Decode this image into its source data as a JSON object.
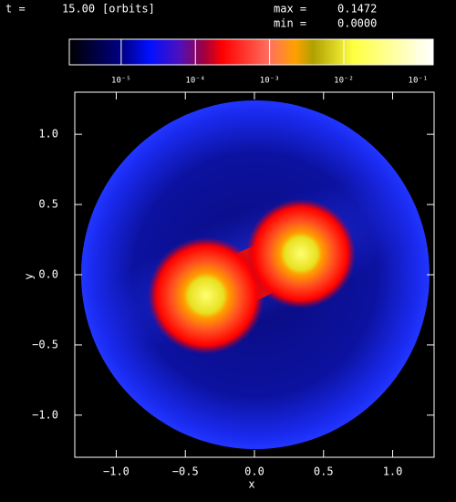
{
  "chart_data": {
    "type": "image",
    "header": {
      "t_label": "t =",
      "time": {
        "value": 15,
        "label": "15.00"
      },
      "time_unit": "[orbits]",
      "max_label": "max =",
      "max": 0.1472,
      "min_label": "min =",
      "min": {
        "value": 0,
        "label": "0.0000"
      }
    },
    "xlabel": "x",
    "ylabel": "y",
    "xlim": [
      -1.3,
      1.3
    ],
    "ylim": [
      -1.3,
      1.3
    ],
    "xticks": [
      {
        "value": -1,
        "label": "−1.0"
      },
      {
        "value": -0.5,
        "label": "−0.5"
      },
      {
        "value": 0,
        "label": "0.0"
      },
      {
        "value": 0.5,
        "label": "0.5"
      },
      {
        "value": 1,
        "label": "1.0"
      }
    ],
    "yticks": [
      {
        "value": -1,
        "label": "−1.0"
      },
      {
        "value": -0.5,
        "label": "−0.5"
      },
      {
        "value": 0,
        "label": "0.0"
      },
      {
        "value": 0.5,
        "label": "0.5"
      },
      {
        "value": 1,
        "label": "1.0"
      }
    ],
    "colorbar": {
      "scale": "log",
      "lim": [
        2e-06,
        0.16
      ],
      "ticks": [
        {
          "value": 1e-05,
          "label": "10⁻⁵"
        },
        {
          "value": 0.0001,
          "label": "10⁻⁴"
        },
        {
          "value": 0.001,
          "label": "10⁻³"
        },
        {
          "value": 0.01,
          "label": "10⁻²"
        },
        {
          "value": 0.1,
          "label": "10⁻¹"
        }
      ]
    }
  }
}
